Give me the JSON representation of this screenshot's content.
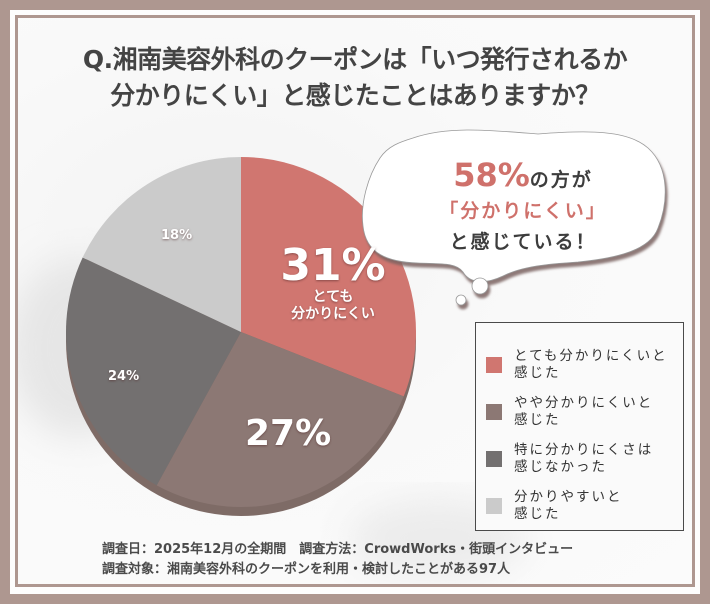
{
  "title": {
    "line1": "Q.湘南美容外科のクーポンは「いつ発行されるか",
    "line2": "分かりにくい」と感じたことはありますか？"
  },
  "bubble": {
    "percent": "58%",
    "line1_rest": "の方が",
    "line2": "「分かりにくい」",
    "line3": "と感じている！"
  },
  "pie_labels": {
    "s1_value": "31%",
    "s1_sub1": "とても",
    "s1_sub2": "分かりにくい",
    "s2_value": "27%",
    "s3_value": "24%",
    "s4_value": "18%"
  },
  "legend": {
    "items": [
      {
        "line1": "とても分かりにくいと",
        "line2": "感じた",
        "color": "#d07670"
      },
      {
        "line1": "やや分かりにくいと",
        "line2": "感じた",
        "color": "#8c7874"
      },
      {
        "line1": "特に分かりにくさは",
        "line2": "感じなかった",
        "color": "#737070"
      },
      {
        "line1": "分かりやすいと",
        "line2": "感じた",
        "color": "#cbcbcb"
      }
    ]
  },
  "footer": {
    "line1": "調査日：2025年12月の全期間　調査方法：CrowdWorks・街頭インタビュー",
    "line2": "調査対象：湘南美容外科のクーポンを利用・検討したことがある97人"
  },
  "colors": {
    "frame": "#ae9790",
    "accent": "#cf716b"
  },
  "chart_data": {
    "type": "pie",
    "title": "Q.湘南美容外科のクーポンは「いつ発行されるか分かりにくい」と感じたことはありますか？",
    "categories": [
      "とても分かりにくいと感じた",
      "やや分かりにくいと感じた",
      "特に分かりにくさは感じなかった",
      "分かりやすいと感じた"
    ],
    "values": [
      31,
      27,
      24,
      18
    ],
    "unit": "%",
    "colors": [
      "#d07670",
      "#8c7874",
      "#737070",
      "#cbcbcb"
    ],
    "start_angle": "12 o'clock, clockwise",
    "legend_position": "right",
    "annotation": "58%の方が「分かりにくい」と感じている！",
    "sample": "97人"
  }
}
